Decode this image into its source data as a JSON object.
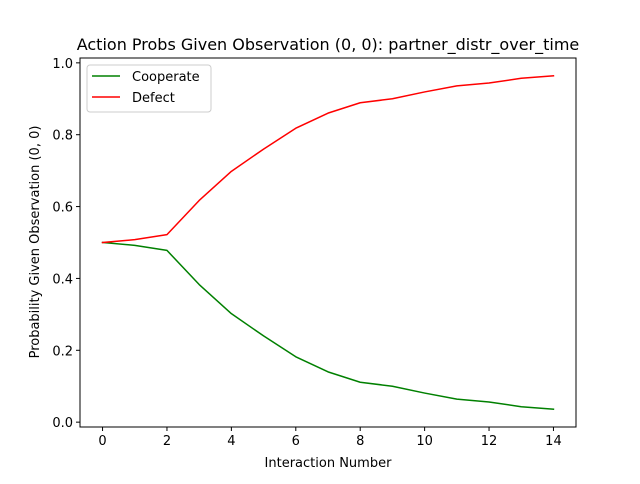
{
  "chart_data": {
    "type": "line",
    "title": "Action Probs Given Observation (0, 0): partner_distr_over_time",
    "xlabel": "Interaction Number",
    "ylabel": "Probability Given Observation (0, 0)",
    "x": [
      0,
      1,
      2,
      3,
      4,
      5,
      6,
      7,
      8,
      9,
      10,
      11,
      12,
      13,
      14
    ],
    "xlim": [
      -0.7,
      14.7
    ],
    "ylim": [
      -0.0135,
      1.0135
    ],
    "xticks": [
      0,
      2,
      4,
      6,
      8,
      10,
      12,
      14
    ],
    "xtick_labels": [
      "0",
      "2",
      "4",
      "6",
      "8",
      "10",
      "12",
      "14"
    ],
    "yticks": [
      0.0,
      0.2,
      0.4,
      0.6,
      0.8,
      1.0
    ],
    "ytick_labels": [
      "0.0",
      "0.2",
      "0.4",
      "0.6",
      "0.8",
      "1.0"
    ],
    "grid": false,
    "legend_position": "upper-left",
    "series": [
      {
        "name": "Cooperate",
        "color": "#008000",
        "values": [
          0.5,
          0.492,
          0.478,
          0.383,
          0.302,
          0.24,
          0.182,
          0.14,
          0.111,
          0.1,
          0.081,
          0.064,
          0.056,
          0.043,
          0.036
        ]
      },
      {
        "name": "Defect",
        "color": "#ff0000",
        "values": [
          0.5,
          0.508,
          0.522,
          0.617,
          0.698,
          0.76,
          0.818,
          0.86,
          0.889,
          0.9,
          0.919,
          0.936,
          0.944,
          0.957,
          0.964
        ]
      }
    ]
  }
}
